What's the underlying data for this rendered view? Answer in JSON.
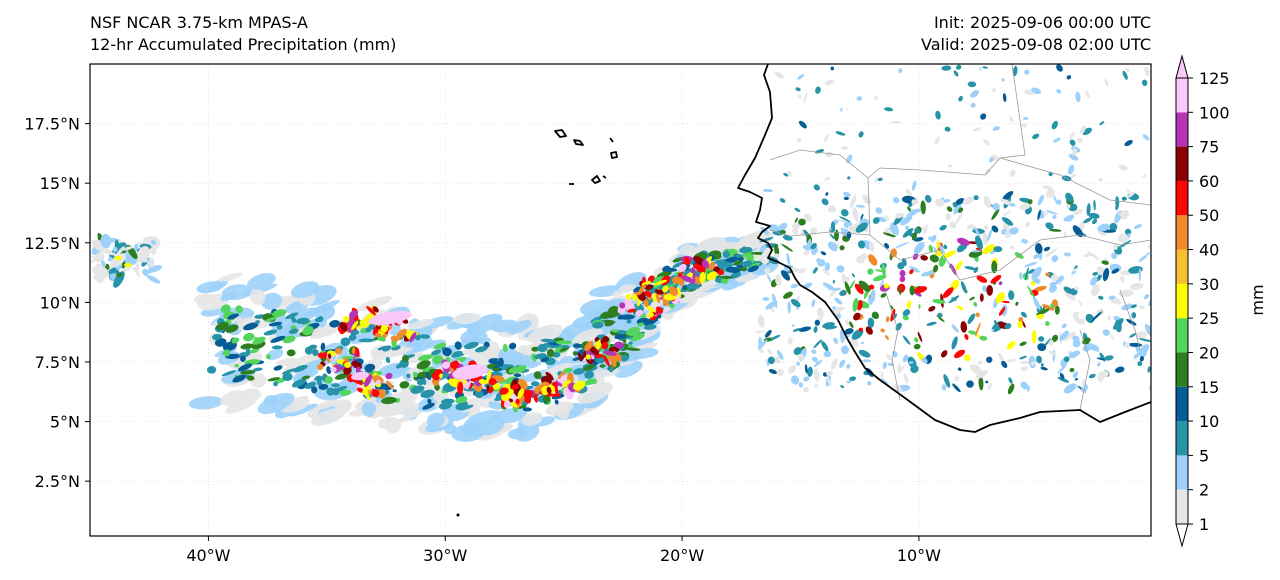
{
  "header": {
    "model": "NSF NCAR 3.75-km MPAS-A",
    "field": "12-hr Accumulated Precipitation (mm)",
    "init": "Init: 2025-09-06 00:00 UTC",
    "valid": "Valid: 2025-09-08 02:00 UTC"
  },
  "map": {
    "lon_range": [
      -45,
      -0.2
    ],
    "lat_range": [
      0.2,
      20.0
    ],
    "y_ticks": [
      "17.5°N",
      "15°N",
      "12.5°N",
      "10°N",
      "7.5°N",
      "5°N",
      "2.5°N"
    ],
    "y_tick_values": [
      17.5,
      15,
      12.5,
      10,
      7.5,
      5,
      2.5
    ],
    "x_ticks": [
      "40°W",
      "30°W",
      "20°W",
      "10°W"
    ],
    "x_tick_values": [
      -40,
      -30,
      -20,
      -10
    ],
    "gridlines": true,
    "coastline_color": "#000000",
    "border_color": "#999999"
  },
  "colorbar": {
    "unit": "mm",
    "levels": [
      "1",
      "2",
      "5",
      "10",
      "15",
      "20",
      "25",
      "30",
      "40",
      "50",
      "60",
      "75",
      "100",
      "125"
    ],
    "colors": [
      "#e6e6e6",
      "#9dd1fb",
      "#2693a8",
      "#065c94",
      "#2c7e1f",
      "#53d45c",
      "#fdfc00",
      "#f8c030",
      "#f08a2a",
      "#fc0606",
      "#8b0000",
      "#b633b5",
      "#fbc8fc"
    ],
    "extend": "both"
  },
  "precip_regions": [
    {
      "name": "atlantic-band",
      "shape": "band"
    },
    {
      "name": "west-africa-cluster",
      "shape": "cluster"
    },
    {
      "name": "western-fragment",
      "shape": "cluster"
    }
  ]
}
